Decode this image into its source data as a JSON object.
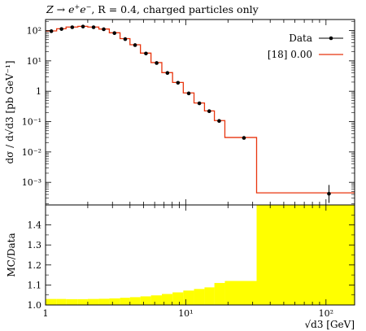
{
  "header": {
    "title_pre": "Z → e",
    "title_post": "e",
    "title_rest": ", R = 0.4, charged particles only"
  },
  "chart_data": [
    {
      "type": "line",
      "title": "Z → e+e−, R = 0.4, charged particles only",
      "ylabel": "dσ / d√d3 [pb GeV⁻¹]",
      "yscale": "log",
      "xscale": "log",
      "xlim": [
        1,
        160
      ],
      "ylim": [
        0.00018,
        230
      ],
      "ytick_labels": [
        "10²",
        "10¹",
        "1",
        "10⁻¹",
        "10⁻²",
        "10⁻³"
      ],
      "legend_position": "top-right",
      "series": [
        {
          "name": "Data",
          "style": "points-with-errorbars",
          "color": "#000000",
          "points": [
            {
              "x": 1.1,
              "y": 95
            },
            {
              "x": 1.3,
              "y": 112
            },
            {
              "x": 1.55,
              "y": 128
            },
            {
              "x": 1.85,
              "y": 135
            },
            {
              "x": 2.2,
              "y": 128
            },
            {
              "x": 2.6,
              "y": 110
            },
            {
              "x": 3.1,
              "y": 82
            },
            {
              "x": 3.7,
              "y": 52
            },
            {
              "x": 4.35,
              "y": 33
            },
            {
              "x": 5.2,
              "y": 17.5
            },
            {
              "x": 6.2,
              "y": 8.5
            },
            {
              "x": 7.4,
              "y": 4.0
            },
            {
              "x": 8.8,
              "y": 1.9
            },
            {
              "x": 10.5,
              "y": 0.85
            },
            {
              "x": 12.5,
              "y": 0.4
            },
            {
              "x": 14.7,
              "y": 0.22
            },
            {
              "x": 17.3,
              "y": 0.105
            },
            {
              "x": 26,
              "y": 0.029
            },
            {
              "x": 105,
              "y": 0.00042,
              "yerr_low": 0.00021,
              "yerr_high": 0.00082
            }
          ]
        },
        {
          "name": "[18] 0.00",
          "style": "step",
          "color": "#e8350e",
          "bins": [
            {
              "lo": 1.0,
              "hi": 1.2,
              "y": 97
            },
            {
              "lo": 1.2,
              "hi": 1.4,
              "y": 114
            },
            {
              "lo": 1.4,
              "hi": 1.7,
              "y": 130
            },
            {
              "lo": 1.7,
              "hi": 2.0,
              "y": 137
            },
            {
              "lo": 2.0,
              "hi": 2.4,
              "y": 130
            },
            {
              "lo": 2.4,
              "hi": 2.85,
              "y": 112
            },
            {
              "lo": 2.85,
              "hi": 3.4,
              "y": 84
            },
            {
              "lo": 3.4,
              "hi": 4.0,
              "y": 54
            },
            {
              "lo": 4.0,
              "hi": 4.75,
              "y": 34
            },
            {
              "lo": 4.75,
              "hi": 5.65,
              "y": 18
            },
            {
              "lo": 5.65,
              "hi": 6.75,
              "y": 8.8
            },
            {
              "lo": 6.75,
              "hi": 8.05,
              "y": 4.1
            },
            {
              "lo": 8.05,
              "hi": 9.6,
              "y": 1.95
            },
            {
              "lo": 9.6,
              "hi": 11.45,
              "y": 0.88
            },
            {
              "lo": 11.45,
              "hi": 13.6,
              "y": 0.41
            },
            {
              "lo": 13.6,
              "hi": 16.0,
              "y": 0.225
            },
            {
              "lo": 16.0,
              "hi": 19.0,
              "y": 0.108
            },
            {
              "lo": 19.0,
              "hi": 32.0,
              "y": 0.03
            },
            {
              "lo": 32.0,
              "hi": 160.0,
              "y": 0.00045
            }
          ]
        }
      ]
    },
    {
      "type": "bar",
      "ylabel": "MC/Data",
      "xlabel": "√d3 [GeV]",
      "xscale": "log",
      "xlim": [
        1,
        160
      ],
      "ylim": [
        1.0,
        1.5
      ],
      "ytick_labels": [
        "1.0",
        "1.1",
        "1.2",
        "1.3",
        "1.4"
      ],
      "xtick_labels": [
        "1",
        "10¹",
        "10²"
      ],
      "band_color": "#ffff00",
      "bins": [
        {
          "lo": 1.0,
          "hi": 1.2,
          "hi_val": 1.03
        },
        {
          "lo": 1.2,
          "hi": 1.4,
          "hi_val": 1.03
        },
        {
          "lo": 1.4,
          "hi": 1.7,
          "hi_val": 1.029
        },
        {
          "lo": 1.7,
          "hi": 2.0,
          "hi_val": 1.029
        },
        {
          "lo": 2.0,
          "hi": 2.4,
          "hi_val": 1.03
        },
        {
          "lo": 2.4,
          "hi": 2.85,
          "hi_val": 1.031
        },
        {
          "lo": 2.85,
          "hi": 3.4,
          "hi_val": 1.033
        },
        {
          "lo": 3.4,
          "hi": 4.0,
          "hi_val": 1.036
        },
        {
          "lo": 4.0,
          "hi": 4.75,
          "hi_val": 1.039
        },
        {
          "lo": 4.75,
          "hi": 5.65,
          "hi_val": 1.043
        },
        {
          "lo": 5.65,
          "hi": 6.75,
          "hi_val": 1.048
        },
        {
          "lo": 6.75,
          "hi": 8.05,
          "hi_val": 1.055
        },
        {
          "lo": 8.05,
          "hi": 9.6,
          "hi_val": 1.063
        },
        {
          "lo": 9.6,
          "hi": 11.45,
          "hi_val": 1.072
        },
        {
          "lo": 11.45,
          "hi": 13.6,
          "hi_val": 1.08
        },
        {
          "lo": 13.6,
          "hi": 16.0,
          "hi_val": 1.088
        },
        {
          "lo": 16.0,
          "hi": 19.0,
          "hi_val": 1.11
        },
        {
          "lo": 19.0,
          "hi": 32.0,
          "hi_val": 1.12
        },
        {
          "lo": 32.0,
          "hi": 160.0,
          "hi_val": 1.5
        }
      ]
    }
  ]
}
